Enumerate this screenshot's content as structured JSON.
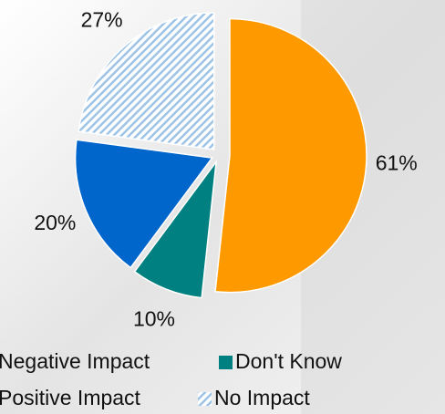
{
  "chart_data": {
    "type": "pie",
    "labels": [
      "Negative Impact",
      "Don't Know",
      "Positive Impact",
      "No Impact"
    ],
    "values": [
      61,
      10,
      20,
      27
    ],
    "value_labels": [
      "61%",
      "10%",
      "20%",
      "27%"
    ],
    "colors": [
      "#ff9900",
      "#008080",
      "#0066cc",
      "#9dc3e6"
    ],
    "patterns": [
      null,
      null,
      null,
      "hatch"
    ]
  }
}
